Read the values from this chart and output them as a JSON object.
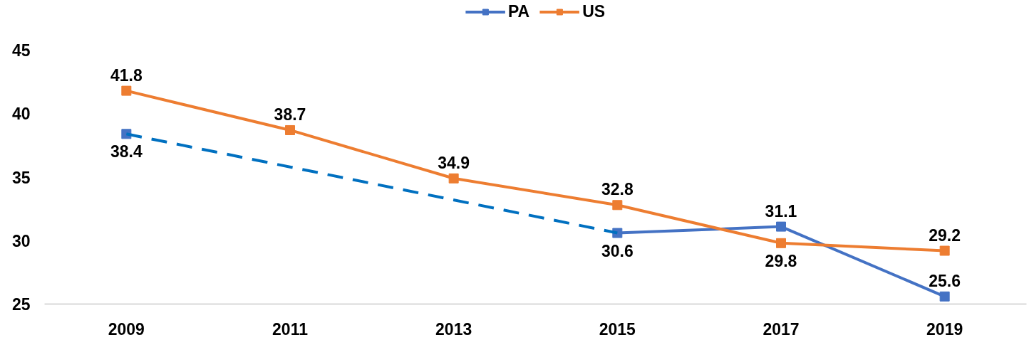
{
  "chart_data": {
    "type": "line",
    "x": [
      2009,
      2011,
      2013,
      2015,
      2017,
      2019
    ],
    "series": [
      {
        "name": "PA",
        "color": "#4472c4",
        "values": [
          38.4,
          null,
          null,
          30.6,
          31.1,
          25.6
        ]
      },
      {
        "name": "US",
        "color": "#ed7d31",
        "values": [
          41.8,
          38.7,
          34.9,
          32.8,
          29.8,
          29.2
        ]
      },
      {
        "type": "line",
        "color": "#0070c0",
        "x": [
          2009,
          2015
        ],
        "values": [
          38.4,
          30.6
        ],
        "line_style": "dashed",
        "marker": "none",
        "data_labels": false
      }
    ],
    "xlim": [
      2008,
      2020
    ],
    "xticks": [
      2009,
      2011,
      2013,
      2015,
      2017,
      2019
    ],
    "ylim": [
      25,
      45
    ],
    "yticks": [
      25,
      30,
      35,
      40,
      45
    ],
    "legend": "top",
    "marker": "square",
    "line_style": "solid",
    "data_labels": true
  }
}
